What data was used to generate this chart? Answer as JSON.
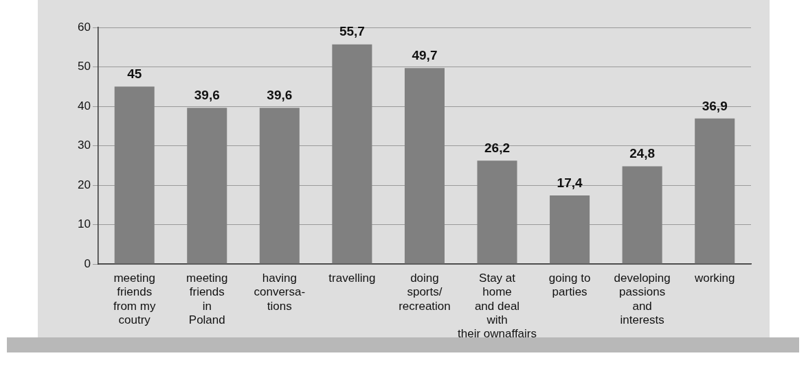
{
  "chart_data": {
    "type": "bar",
    "categories": [
      "meeting\nfriends\nfrom my\ncoutry",
      "meeting\nfriends\nin\nPoland",
      "having\nconversa-\ntions",
      "travelling",
      "doing\nsports/\nrecreation",
      "Stay at\nhome\nand deal\nwith\ntheir ownaffairs",
      "going to\nparties",
      "developing\npassions\nand\ninterests",
      "working"
    ],
    "values": [
      45,
      39.6,
      39.6,
      55.7,
      49.7,
      26.2,
      17.4,
      24.8,
      36.9
    ],
    "value_labels": [
      "45",
      "39,6",
      "39,6",
      "55,7",
      "49,7",
      "26,2",
      "17,4",
      "24,8",
      "36,9"
    ],
    "color": "#808080",
    "ylim": [
      0,
      60
    ],
    "yticks": [
      0,
      10,
      20,
      30,
      40,
      50,
      60
    ],
    "grid": "y",
    "legend": false
  }
}
